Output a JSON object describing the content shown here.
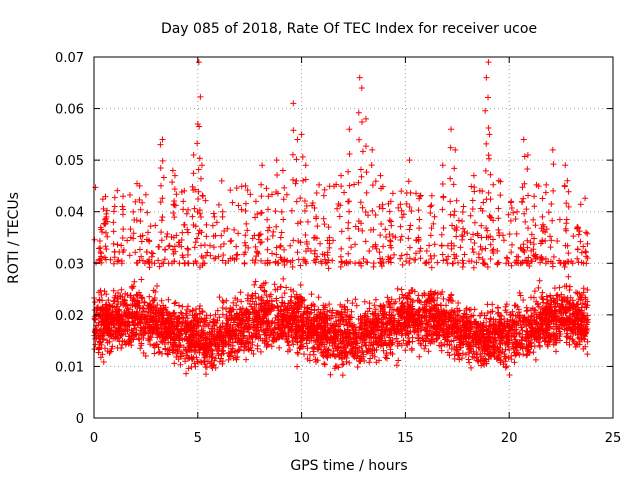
{
  "chart_data": {
    "type": "scatter",
    "title": "Day 085 of 2018, Rate Of TEC Index for receiver ucoe",
    "xlabel": "GPS time / hours",
    "ylabel": "ROTI / TECUs",
    "xlim": [
      0,
      25
    ],
    "ylim": [
      0,
      0.07
    ],
    "x_ticks": [
      0,
      5,
      10,
      15,
      20,
      25
    ],
    "x_tick_labels": [
      "0",
      "5",
      "10",
      "15",
      "20",
      "25"
    ],
    "y_ticks": [
      0,
      0.01,
      0.02,
      0.03,
      0.04,
      0.05,
      0.06,
      0.07
    ],
    "y_tick_labels": [
      "0",
      "0.01",
      "0.02",
      "0.03",
      "0.04",
      "0.05",
      "0.06",
      "0.07"
    ],
    "grid": true,
    "marker": "+",
    "color": "#ff0000",
    "series": [
      {
        "name": "ROTI",
        "note": "dense scatter over 0-23.8 h; bulk 0.005-0.03 TECU, sparse outliers listed",
        "x_range": [
          0,
          23.8
        ],
        "bulk_range": [
          0.005,
          0.032
        ],
        "outliers": [
          {
            "x": 0.3,
            "y": 0.033
          },
          {
            "x": 0.6,
            "y": 0.039
          },
          {
            "x": 1.0,
            "y": 0.041
          },
          {
            "x": 1.4,
            "y": 0.043
          },
          {
            "x": 2.2,
            "y": 0.045
          },
          {
            "x": 2.6,
            "y": 0.036
          },
          {
            "x": 3.2,
            "y": 0.053
          },
          {
            "x": 3.3,
            "y": 0.054
          },
          {
            "x": 3.8,
            "y": 0.048
          },
          {
            "x": 3.9,
            "y": 0.047
          },
          {
            "x": 4.3,
            "y": 0.042
          },
          {
            "x": 4.8,
            "y": 0.051
          },
          {
            "x": 5.0,
            "y": 0.057
          },
          {
            "x": 5.05,
            "y": 0.069
          },
          {
            "x": 5.2,
            "y": 0.049
          },
          {
            "x": 5.8,
            "y": 0.039
          },
          {
            "x": 6.2,
            "y": 0.04
          },
          {
            "x": 7.3,
            "y": 0.045
          },
          {
            "x": 7.8,
            "y": 0.042
          },
          {
            "x": 8.1,
            "y": 0.049
          },
          {
            "x": 8.4,
            "y": 0.043
          },
          {
            "x": 8.8,
            "y": 0.05
          },
          {
            "x": 9.1,
            "y": 0.048
          },
          {
            "x": 9.6,
            "y": 0.061
          },
          {
            "x": 9.8,
            "y": 0.054
          },
          {
            "x": 10.0,
            "y": 0.055
          },
          {
            "x": 10.2,
            "y": 0.049
          },
          {
            "x": 10.7,
            "y": 0.039
          },
          {
            "x": 11.3,
            "y": 0.037
          },
          {
            "x": 11.9,
            "y": 0.047
          },
          {
            "x": 12.3,
            "y": 0.056
          },
          {
            "x": 12.8,
            "y": 0.066
          },
          {
            "x": 12.9,
            "y": 0.064
          },
          {
            "x": 13.1,
            "y": 0.058
          },
          {
            "x": 13.4,
            "y": 0.052
          },
          {
            "x": 13.8,
            "y": 0.047
          },
          {
            "x": 14.3,
            "y": 0.042
          },
          {
            "x": 14.8,
            "y": 0.044
          },
          {
            "x": 15.2,
            "y": 0.05
          },
          {
            "x": 15.7,
            "y": 0.043
          },
          {
            "x": 16.2,
            "y": 0.041
          },
          {
            "x": 16.8,
            "y": 0.049
          },
          {
            "x": 17.2,
            "y": 0.056
          },
          {
            "x": 17.4,
            "y": 0.052
          },
          {
            "x": 17.8,
            "y": 0.041
          },
          {
            "x": 18.3,
            "y": 0.047
          },
          {
            "x": 18.7,
            "y": 0.044
          },
          {
            "x": 18.9,
            "y": 0.066
          },
          {
            "x": 19.0,
            "y": 0.069
          },
          {
            "x": 19.05,
            "y": 0.055
          },
          {
            "x": 19.5,
            "y": 0.046
          },
          {
            "x": 20.1,
            "y": 0.042
          },
          {
            "x": 20.7,
            "y": 0.054
          },
          {
            "x": 20.9,
            "y": 0.051
          },
          {
            "x": 21.2,
            "y": 0.043
          },
          {
            "x": 21.6,
            "y": 0.039
          },
          {
            "x": 22.1,
            "y": 0.052
          },
          {
            "x": 22.7,
            "y": 0.049
          },
          {
            "x": 22.8,
            "y": 0.046
          },
          {
            "x": 23.3,
            "y": 0.037
          },
          {
            "x": 23.7,
            "y": 0.036
          }
        ]
      }
    ]
  }
}
